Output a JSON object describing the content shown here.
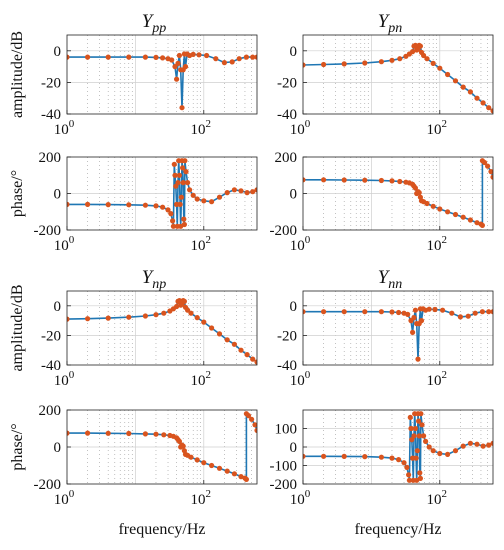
{
  "colors": {
    "line": "#1f77b4",
    "marker": "#d9541e",
    "grid": "#d0d0d0"
  },
  "chart_data": [
    {
      "type": "line",
      "title": {
        "main": "Y",
        "sub": "pp"
      },
      "ylabel": "amplitude/dB",
      "xlabel": "",
      "xscale": "log",
      "xlim": [
        1,
        600
      ],
      "ylim": [
        -40,
        10
      ],
      "yticks": [
        {
          "v": 0,
          "t": "0"
        },
        {
          "v": -20,
          "t": "-20"
        },
        {
          "v": -40,
          "t": "-40"
        }
      ],
      "xticks": [
        {
          "v": 1,
          "b": "10",
          "e": "0"
        },
        {
          "v": 100,
          "b": "10",
          "e": "2"
        }
      ],
      "series": [
        {
          "x": [
            1,
            2,
            4,
            8,
            14,
            20,
            25,
            30,
            34,
            38,
            40,
            42,
            44,
            46,
            48,
            50,
            52,
            54,
            57,
            62,
            70,
            85,
            110,
            150,
            200,
            260,
            330,
            420,
            520,
            600
          ],
          "y": [
            -4,
            -4,
            -4,
            -4,
            -4,
            -4.2,
            -4.5,
            -5,
            -5.8,
            -10,
            -18,
            -8,
            -3,
            -12,
            -36,
            -12,
            -2,
            -10,
            -2,
            -3,
            -2.3,
            -2.5,
            -3,
            -5,
            -7.5,
            -7,
            -5,
            -4,
            -4,
            -4
          ]
        }
      ]
    },
    {
      "type": "line",
      "title": {
        "main": "Y",
        "sub": "pn"
      },
      "ylabel": "",
      "xlabel": "",
      "xscale": "log",
      "xlim": [
        1,
        600
      ],
      "ylim": [
        -40,
        10
      ],
      "yticks": [
        {
          "v": 0,
          "t": "0"
        },
        {
          "v": -20,
          "t": "-20"
        },
        {
          "v": -40,
          "t": "-40"
        }
      ],
      "xticks": [
        {
          "v": 1,
          "b": "10",
          "e": "0"
        },
        {
          "v": 100,
          "b": "10",
          "e": "2"
        }
      ],
      "series": [
        {
          "x": [
            1,
            2,
            4,
            8,
            14,
            20,
            26,
            32,
            36,
            40,
            42,
            44,
            46,
            48,
            50,
            52,
            54,
            58,
            65,
            80,
            100,
            130,
            170,
            220,
            280,
            350,
            430,
            520,
            600
          ],
          "y": [
            -9,
            -8.7,
            -8.3,
            -7.7,
            -6.9,
            -6,
            -5,
            -3.5,
            -2,
            -0.5,
            3,
            3.5,
            0.5,
            1,
            3.5,
            3,
            -1,
            -3,
            -5,
            -8,
            -11,
            -15,
            -19,
            -23,
            -26,
            -30,
            -33,
            -36,
            -38
          ]
        }
      ]
    },
    {
      "type": "line",
      "title": "",
      "ylabel": "phase/°",
      "xlabel": "",
      "xscale": "log",
      "xlim": [
        1,
        600
      ],
      "ylim": [
        -200,
        200
      ],
      "yticks": [
        {
          "v": 200,
          "t": "200"
        },
        {
          "v": 0,
          "t": "0"
        },
        {
          "v": -200,
          "t": "-200"
        }
      ],
      "xticks": [
        {
          "v": 1,
          "b": "10",
          "e": "0"
        },
        {
          "v": 100,
          "b": "10",
          "e": "2"
        }
      ],
      "series": [
        {
          "x": [
            1,
            2,
            4,
            8,
            14,
            20,
            25,
            30,
            33,
            35,
            36,
            37,
            38,
            39,
            40,
            41,
            42,
            43,
            44,
            45,
            46,
            47,
            48,
            49,
            50,
            51,
            52,
            53,
            55,
            58,
            62,
            70,
            80,
            100,
            130,
            170,
            220,
            280,
            350,
            430,
            520,
            600
          ],
          "y": [
            -60,
            -60,
            -61,
            -62,
            -64,
            -68,
            -75,
            -90,
            -110,
            -150,
            -180,
            160,
            100,
            40,
            -60,
            -180,
            60,
            180,
            100,
            -60,
            -180,
            -20,
            180,
            140,
            60,
            -140,
            -170,
            180,
            120,
            60,
            20,
            -10,
            -30,
            -40,
            -45,
            -20,
            5,
            20,
            15,
            5,
            10,
            20
          ]
        }
      ]
    },
    {
      "type": "line",
      "title": "",
      "ylabel": "",
      "xlabel": "",
      "xscale": "log",
      "xlim": [
        1,
        600
      ],
      "ylim": [
        -200,
        200
      ],
      "yticks": [
        {
          "v": 200,
          "t": "200"
        },
        {
          "v": 0,
          "t": "0"
        },
        {
          "v": -200,
          "t": "-200"
        }
      ],
      "xticks": [
        {
          "v": 1,
          "b": "10",
          "e": "0"
        },
        {
          "v": 100,
          "b": "10",
          "e": "2"
        }
      ],
      "series": [
        {
          "x": [
            1,
            2,
            4,
            8,
            14,
            20,
            26,
            32,
            36,
            40,
            42,
            44,
            46,
            48,
            50,
            52,
            54,
            58,
            65,
            80,
            100,
            130,
            170,
            220,
            280,
            350,
            400,
            420,
            420.5,
            450,
            500,
            560,
            600
          ],
          "y": [
            75,
            75,
            74,
            73,
            71,
            69,
            66,
            62,
            58,
            50,
            40,
            30,
            0,
            10,
            5,
            -20,
            -40,
            -45,
            -55,
            -70,
            -85,
            -100,
            -115,
            -130,
            -145,
            -160,
            -168,
            -175,
            180,
            170,
            150,
            120,
            90
          ]
        }
      ]
    },
    {
      "type": "line",
      "title": {
        "main": "Y",
        "sub": "np"
      },
      "ylabel": "amplitude/dB",
      "xlabel": "",
      "xscale": "log",
      "xlim": [
        1,
        600
      ],
      "ylim": [
        -40,
        10
      ],
      "yticks": [
        {
          "v": 0,
          "t": "0"
        },
        {
          "v": -20,
          "t": "-20"
        },
        {
          "v": -40,
          "t": "-40"
        }
      ],
      "xticks": [
        {
          "v": 1,
          "b": "10",
          "e": "0"
        },
        {
          "v": 100,
          "b": "10",
          "e": "2"
        }
      ],
      "series": [
        {
          "x": [
            1,
            2,
            4,
            8,
            14,
            20,
            26,
            32,
            36,
            40,
            42,
            44,
            46,
            48,
            50,
            52,
            54,
            58,
            65,
            80,
            100,
            130,
            170,
            220,
            280,
            350,
            430,
            520,
            600
          ],
          "y": [
            -9,
            -8.7,
            -8.3,
            -7.7,
            -6.9,
            -6,
            -5,
            -3.5,
            -2,
            -0.5,
            3,
            3.5,
            0.5,
            1,
            3.5,
            3,
            -1,
            -3,
            -5,
            -8,
            -11,
            -15,
            -19,
            -23,
            -26,
            -30,
            -33,
            -36,
            -38
          ]
        }
      ]
    },
    {
      "type": "line",
      "title": {
        "main": "Y",
        "sub": "nn"
      },
      "ylabel": "",
      "xlabel": "",
      "xscale": "log",
      "xlim": [
        1,
        600
      ],
      "ylim": [
        -40,
        10
      ],
      "yticks": [
        {
          "v": 0,
          "t": "0"
        },
        {
          "v": -20,
          "t": "-20"
        },
        {
          "v": -40,
          "t": "-40"
        }
      ],
      "xticks": [
        {
          "v": 1,
          "b": "10",
          "e": "0"
        },
        {
          "v": 100,
          "b": "10",
          "e": "2"
        }
      ],
      "series": [
        {
          "x": [
            1,
            2,
            4,
            8,
            14,
            20,
            25,
            30,
            34,
            38,
            40,
            42,
            44,
            46,
            48,
            50,
            52,
            54,
            57,
            62,
            70,
            85,
            110,
            150,
            200,
            260,
            330,
            420,
            520,
            600
          ],
          "y": [
            -4,
            -4,
            -4,
            -4,
            -4,
            -4.2,
            -4.5,
            -5,
            -5.8,
            -10,
            -18,
            -8,
            -3,
            -12,
            -36,
            -12,
            -2,
            -10,
            -2,
            -3,
            -2.3,
            -2.5,
            -3,
            -5,
            -7.5,
            -7,
            -5,
            -4,
            -4,
            -4
          ]
        }
      ]
    },
    {
      "type": "line",
      "title": "",
      "ylabel": "phase/°",
      "xlabel": "frequency/Hz",
      "xscale": "log",
      "xlim": [
        1,
        600
      ],
      "ylim": [
        -200,
        200
      ],
      "yticks": [
        {
          "v": 200,
          "t": "200"
        },
        {
          "v": 0,
          "t": "0"
        },
        {
          "v": -200,
          "t": "-200"
        }
      ],
      "xticks": [
        {
          "v": 1,
          "b": "10",
          "e": "0"
        },
        {
          "v": 100,
          "b": "10",
          "e": "2"
        }
      ],
      "series": [
        {
          "x": [
            1,
            2,
            4,
            8,
            14,
            20,
            26,
            32,
            36,
            40,
            42,
            44,
            46,
            48,
            50,
            52,
            54,
            58,
            65,
            80,
            100,
            130,
            170,
            220,
            280,
            350,
            400,
            420,
            420.5,
            450,
            500,
            560,
            600
          ],
          "y": [
            75,
            75,
            74,
            73,
            71,
            69,
            66,
            62,
            58,
            50,
            40,
            30,
            0,
            10,
            5,
            -20,
            -40,
            -45,
            -55,
            -70,
            -85,
            -100,
            -115,
            -130,
            -145,
            -160,
            -168,
            -175,
            180,
            170,
            150,
            120,
            90
          ]
        }
      ]
    },
    {
      "type": "line",
      "title": "",
      "ylabel": "",
      "xlabel": "frequency/Hz",
      "xscale": "log",
      "xlim": [
        1,
        600
      ],
      "ylim": [
        -200,
        200
      ],
      "yticks": [
        {
          "v": 100,
          "t": "100"
        },
        {
          "v": 0,
          "t": "0"
        },
        {
          "v": -100,
          "t": "-100"
        },
        {
          "v": -200,
          "t": "-200"
        }
      ],
      "xticks": [
        {
          "v": 1,
          "b": "10",
          "e": "0"
        },
        {
          "v": 100,
          "b": "10",
          "e": "2"
        }
      ],
      "series": [
        {
          "x": [
            1,
            2,
            4,
            8,
            14,
            20,
            25,
            30,
            33,
            35,
            36,
            37,
            38,
            39,
            40,
            41,
            42,
            43,
            44,
            45,
            46,
            47,
            48,
            49,
            50,
            51,
            52,
            53,
            55,
            58,
            62,
            70,
            80,
            100,
            130,
            170,
            220,
            280,
            350,
            430,
            520,
            600
          ],
          "y": [
            -50,
            -50,
            -51,
            -52,
            -55,
            -60,
            -68,
            -85,
            -110,
            -150,
            -180,
            160,
            100,
            40,
            -60,
            -180,
            60,
            180,
            100,
            -60,
            -180,
            -20,
            180,
            140,
            60,
            -140,
            -170,
            180,
            120,
            60,
            30,
            0,
            -20,
            -35,
            -40,
            -20,
            5,
            20,
            15,
            5,
            10,
            20
          ]
        }
      ]
    }
  ]
}
